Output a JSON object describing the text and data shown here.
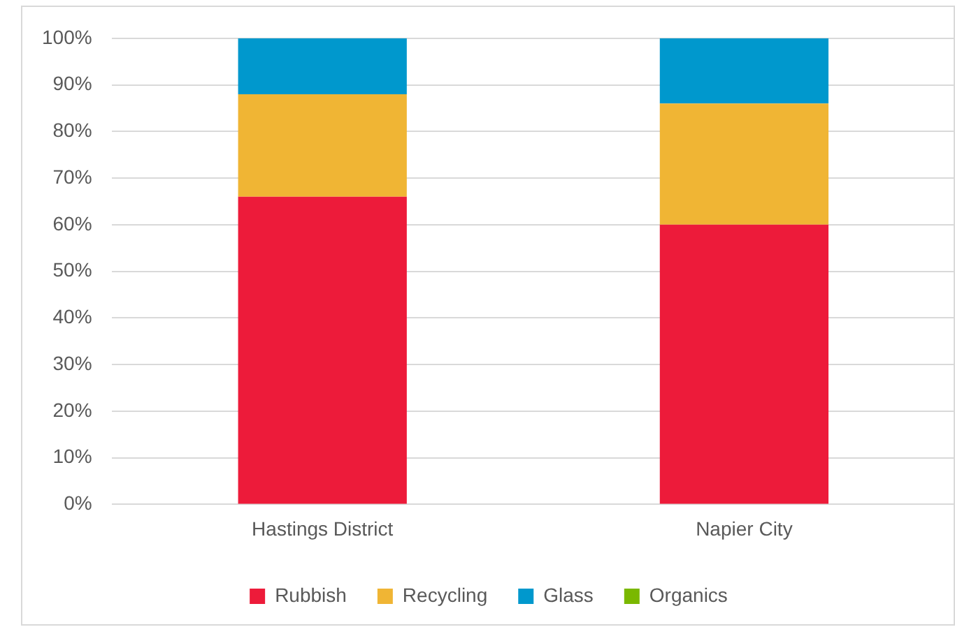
{
  "chart_data": {
    "type": "bar",
    "stacked": true,
    "categories": [
      "Hastings District",
      "Napier City"
    ],
    "series": [
      {
        "name": "Rubbish",
        "color": "#ed1b3a",
        "values": [
          66,
          60
        ]
      },
      {
        "name": "Recycling",
        "color": "#f0b534",
        "values": [
          22,
          26
        ]
      },
      {
        "name": "Glass",
        "color": "#0098cd",
        "values": [
          12,
          14
        ]
      },
      {
        "name": "Organics",
        "color": "#7ab800",
        "values": [
          0,
          0
        ]
      }
    ],
    "ylim": [
      0,
      100
    ],
    "yticks": [
      {
        "value": 0,
        "label": "0%"
      },
      {
        "value": 10,
        "label": "10%"
      },
      {
        "value": 20,
        "label": "20%"
      },
      {
        "value": 30,
        "label": "30%"
      },
      {
        "value": 40,
        "label": "40%"
      },
      {
        "value": 50,
        "label": "50%"
      },
      {
        "value": 60,
        "label": "60%"
      },
      {
        "value": 70,
        "label": "70%"
      },
      {
        "value": 80,
        "label": "80%"
      },
      {
        "value": 90,
        "label": "90%"
      },
      {
        "value": 100,
        "label": "100%"
      }
    ],
    "grid": "y",
    "legend": "bottom"
  }
}
